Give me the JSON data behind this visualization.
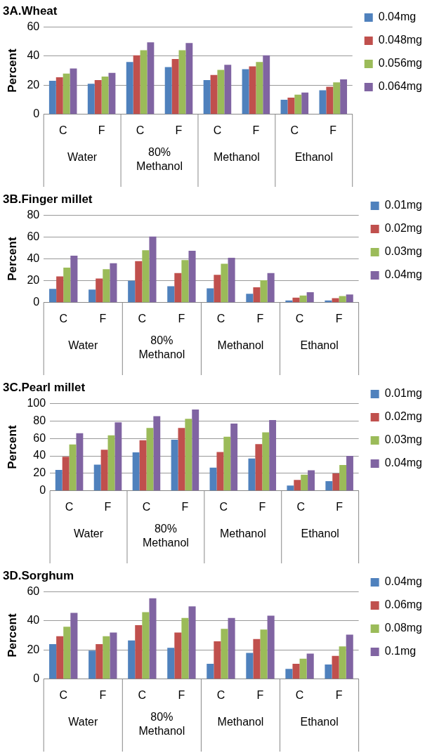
{
  "chart_data": [
    {
      "type": "bar",
      "title": "3A.Wheat",
      "ylabel": "Percent",
      "categories": [
        "C",
        "F",
        "C",
        "F",
        "C",
        "F",
        "C",
        "F"
      ],
      "annotations": [
        "Water",
        "80% Methanol",
        "Methanol",
        "Ethanol"
      ],
      "ylim": [
        0,
        60
      ],
      "yticks": [
        0,
        20,
        40,
        60
      ],
      "grid": "y",
      "legend": "right",
      "series": [
        {
          "name": "0.04mg",
          "color": "#4f81bd",
          "values": [
            23,
            21,
            36,
            32.5,
            23.5,
            31,
            10,
            16.5
          ]
        },
        {
          "name": "0.048mg",
          "color": "#c0504d",
          "values": [
            25.5,
            23.5,
            40.5,
            38,
            27,
            33,
            11.5,
            19
          ]
        },
        {
          "name": "0.056mg",
          "color": "#9bbb59",
          "values": [
            28,
            26,
            44,
            44,
            30.5,
            36,
            13.5,
            22
          ]
        },
        {
          "name": "0.064mg",
          "color": "#8064a2",
          "values": [
            31.5,
            28.5,
            49.5,
            49,
            34,
            40.5,
            15,
            24
          ]
        }
      ]
    },
    {
      "type": "bar",
      "title": "3B.Finger millet",
      "ylabel": "Percent",
      "categories": [
        "C",
        "F",
        "C",
        "F",
        "C",
        "F",
        "C",
        "F"
      ],
      "annotations": [
        "Water",
        "80% Methanol",
        "Methanol",
        "Ethanol"
      ],
      "ylim": [
        0,
        80
      ],
      "yticks": [
        0,
        20,
        40,
        60,
        80
      ],
      "grid": "y",
      "legend": "right",
      "series": [
        {
          "name": "0.01mg",
          "color": "#4f81bd",
          "values": [
            12.5,
            12,
            20,
            15,
            13,
            8,
            2,
            2
          ]
        },
        {
          "name": "0.02mg",
          "color": "#c0504d",
          "values": [
            24,
            22,
            38,
            27,
            25.5,
            14,
            4.5,
            4
          ]
        },
        {
          "name": "0.03mg",
          "color": "#9bbb59",
          "values": [
            32,
            30.5,
            48,
            39,
            35.5,
            20.5,
            6.5,
            6
          ]
        },
        {
          "name": "0.04mg",
          "color": "#8064a2",
          "values": [
            43,
            36,
            60.5,
            47.5,
            41,
            27,
            9.5,
            7.5
          ]
        }
      ]
    },
    {
      "type": "bar",
      "title": "3C.Pearl millet",
      "ylabel": "Percent",
      "categories": [
        "C",
        "F",
        "C",
        "F",
        "C",
        "F",
        "C",
        "F"
      ],
      "annotations": [
        "Water",
        "80% Methanol",
        "Methanol",
        "Ethanol"
      ],
      "ylim": [
        0,
        100
      ],
      "yticks": [
        0,
        20,
        40,
        60,
        80,
        100
      ],
      "grid": "y",
      "legend": "right",
      "series": [
        {
          "name": "0.01mg",
          "color": "#4f81bd",
          "values": [
            24,
            30,
            44,
            58.5,
            26.5,
            37,
            6,
            11
          ]
        },
        {
          "name": "0.02mg",
          "color": "#c0504d",
          "values": [
            39,
            47,
            58,
            72,
            44.5,
            53.5,
            12.5,
            20
          ]
        },
        {
          "name": "0.03mg",
          "color": "#9bbb59",
          "values": [
            53,
            63.5,
            72,
            82.5,
            62,
            67,
            18.5,
            29.5
          ]
        },
        {
          "name": "0.04mg",
          "color": "#8064a2",
          "values": [
            66,
            78.5,
            85.5,
            93,
            77,
            81,
            23.5,
            40
          ]
        }
      ]
    },
    {
      "type": "bar",
      "title": "3D.Sorghum",
      "ylabel": "Percent",
      "categories": [
        "C",
        "F",
        "C",
        "F",
        "C",
        "F",
        "C",
        "F"
      ],
      "annotations": [
        "Water",
        "80% Methanol",
        "Methanol",
        "Ethanol"
      ],
      "ylim": [
        0,
        60
      ],
      "yticks": [
        0,
        20,
        40,
        60
      ],
      "grid": "y",
      "legend": "right",
      "series": [
        {
          "name": "0.04mg",
          "color": "#4f81bd",
          "values": [
            24,
            19.5,
            26.5,
            21.5,
            10.5,
            18,
            7,
            10
          ]
        },
        {
          "name": "0.06mg",
          "color": "#c0504d",
          "values": [
            29.5,
            24,
            37,
            32,
            26,
            27.5,
            10.5,
            16
          ]
        },
        {
          "name": "0.08mg",
          "color": "#9bbb59",
          "values": [
            36,
            29.5,
            46,
            42,
            34.5,
            34,
            14,
            22.5
          ]
        },
        {
          "name": "0.1mg",
          "color": "#8064a2",
          "values": [
            45.5,
            32,
            55.5,
            50,
            42,
            43.5,
            17.5,
            30.5
          ]
        }
      ]
    }
  ]
}
